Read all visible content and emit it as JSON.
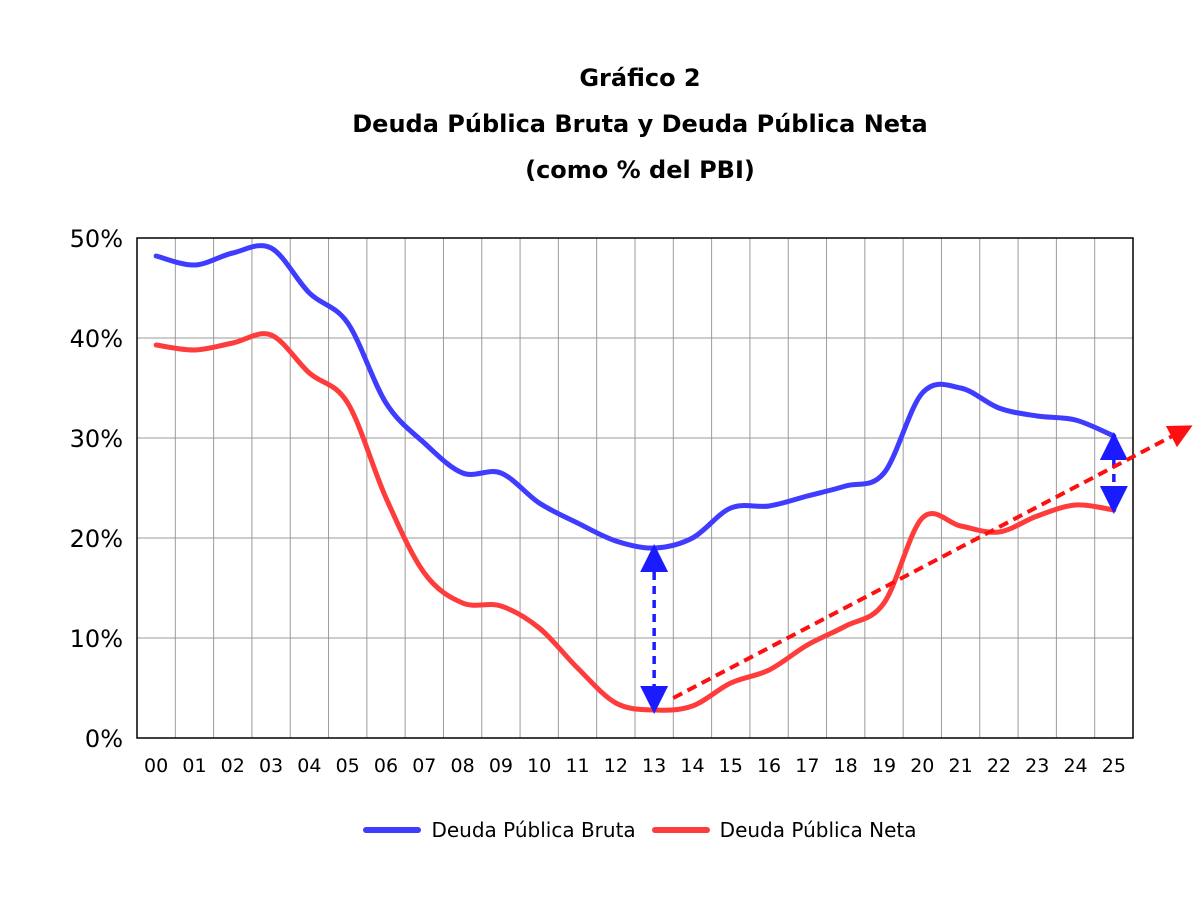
{
  "chart_data": {
    "type": "line",
    "title": "Gráfico 2",
    "subtitle": "Deuda Pública Bruta y Deuda Pública Neta",
    "subtitle2": "(como % del PBI)",
    "xlabel": "",
    "ylabel": "",
    "ylim": [
      0,
      50
    ],
    "yticks": [
      0,
      10,
      20,
      30,
      40,
      50
    ],
    "ytick_labels": [
      "0%",
      "10%",
      "20%",
      "30%",
      "40%",
      "50%"
    ],
    "grid": true,
    "legend_position": "bottom",
    "categories": [
      "00",
      "01",
      "02",
      "03",
      "04",
      "05",
      "06",
      "07",
      "08",
      "09",
      "10",
      "11",
      "12",
      "13",
      "14",
      "15",
      "16",
      "17",
      "18",
      "19",
      "20",
      "21",
      "22",
      "23",
      "24",
      "25"
    ],
    "series": [
      {
        "name": "Deuda Pública Bruta",
        "color": "#3f3cff",
        "values": [
          48.2,
          47.3,
          48.5,
          49.0,
          44.5,
          41.5,
          33.5,
          29.5,
          26.5,
          26.5,
          23.5,
          21.5,
          19.7,
          19.0,
          20.0,
          23.0,
          23.2,
          24.2,
          25.2,
          26.5,
          34.5,
          35.0,
          33.0,
          32.2,
          31.8,
          30.2
        ]
      },
      {
        "name": "Deuda Pública Neta",
        "color": "#ff3c3c",
        "values": [
          39.3,
          38.8,
          39.5,
          40.3,
          36.5,
          33.5,
          24.0,
          16.5,
          13.5,
          13.2,
          11.0,
          7.0,
          3.5,
          2.8,
          3.2,
          5.5,
          6.8,
          9.3,
          11.2,
          13.5,
          22.0,
          21.2,
          20.6,
          22.2,
          23.3,
          22.8
        ]
      }
    ],
    "annotations": [
      {
        "kind": "double-arrow",
        "color": "#1b1bff",
        "x": "13",
        "y_range": [
          2.8,
          19.0
        ]
      },
      {
        "kind": "double-arrow",
        "color": "#1b1bff",
        "x": "25",
        "y_range": [
          22.8,
          30.2
        ]
      },
      {
        "kind": "trend-arrow",
        "color": "#ff1010",
        "from": {
          "x": 13.5,
          "y": 4.0
        },
        "to": {
          "x": 27.0,
          "y": 31.0
        }
      }
    ]
  }
}
